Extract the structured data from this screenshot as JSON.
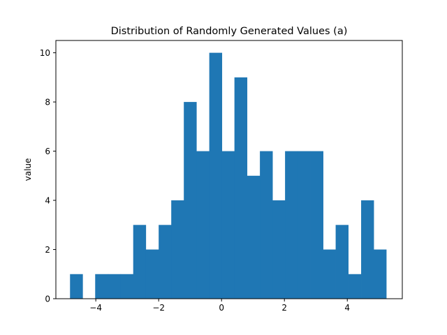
{
  "chart_data": {
    "type": "bar",
    "title": "Distribution of Randomly Generated Values (a)",
    "xlabel": "",
    "ylabel": "value",
    "xlim": [
      -5.27,
      5.75
    ],
    "ylim": [
      0,
      10.5
    ],
    "bar_color": "#1f77b4",
    "grid": false,
    "x_ticks": [
      -4,
      -2,
      0,
      2,
      4
    ],
    "x_tick_labels": [
      "−4",
      "−2",
      "0",
      "2",
      "4"
    ],
    "y_ticks": [
      0,
      2,
      4,
      6,
      8,
      10
    ],
    "y_tick_labels": [
      "0",
      "2",
      "4",
      "6",
      "8",
      "10"
    ],
    "bins": [
      {
        "left": -4.82,
        "right": -4.42,
        "value": 1
      },
      {
        "left": -4.42,
        "right": -4.02,
        "value": 0
      },
      {
        "left": -4.02,
        "right": -3.61,
        "value": 1
      },
      {
        "left": -3.61,
        "right": -3.21,
        "value": 1
      },
      {
        "left": -3.21,
        "right": -2.81,
        "value": 1
      },
      {
        "left": -2.81,
        "right": -2.41,
        "value": 3
      },
      {
        "left": -2.41,
        "right": -2.0,
        "value": 2
      },
      {
        "left": -2.0,
        "right": -1.6,
        "value": 3
      },
      {
        "left": -1.6,
        "right": -1.2,
        "value": 4
      },
      {
        "left": -1.2,
        "right": -0.8,
        "value": 8
      },
      {
        "left": -0.8,
        "right": -0.39,
        "value": 6
      },
      {
        "left": -0.39,
        "right": 0.01,
        "value": 10
      },
      {
        "left": 0.01,
        "right": 0.41,
        "value": 6
      },
      {
        "left": 0.41,
        "right": 0.81,
        "value": 9
      },
      {
        "left": 0.81,
        "right": 1.22,
        "value": 5
      },
      {
        "left": 1.22,
        "right": 1.62,
        "value": 6
      },
      {
        "left": 1.62,
        "right": 2.02,
        "value": 4
      },
      {
        "left": 2.02,
        "right": 2.42,
        "value": 6
      },
      {
        "left": 2.42,
        "right": 2.83,
        "value": 6
      },
      {
        "left": 2.83,
        "right": 3.23,
        "value": 6
      },
      {
        "left": 3.23,
        "right": 3.63,
        "value": 2
      },
      {
        "left": 3.63,
        "right": 4.03,
        "value": 3
      },
      {
        "left": 4.03,
        "right": 4.44,
        "value": 1
      },
      {
        "left": 4.44,
        "right": 4.84,
        "value": 4
      },
      {
        "left": 4.84,
        "right": 5.24,
        "value": 2
      }
    ]
  }
}
